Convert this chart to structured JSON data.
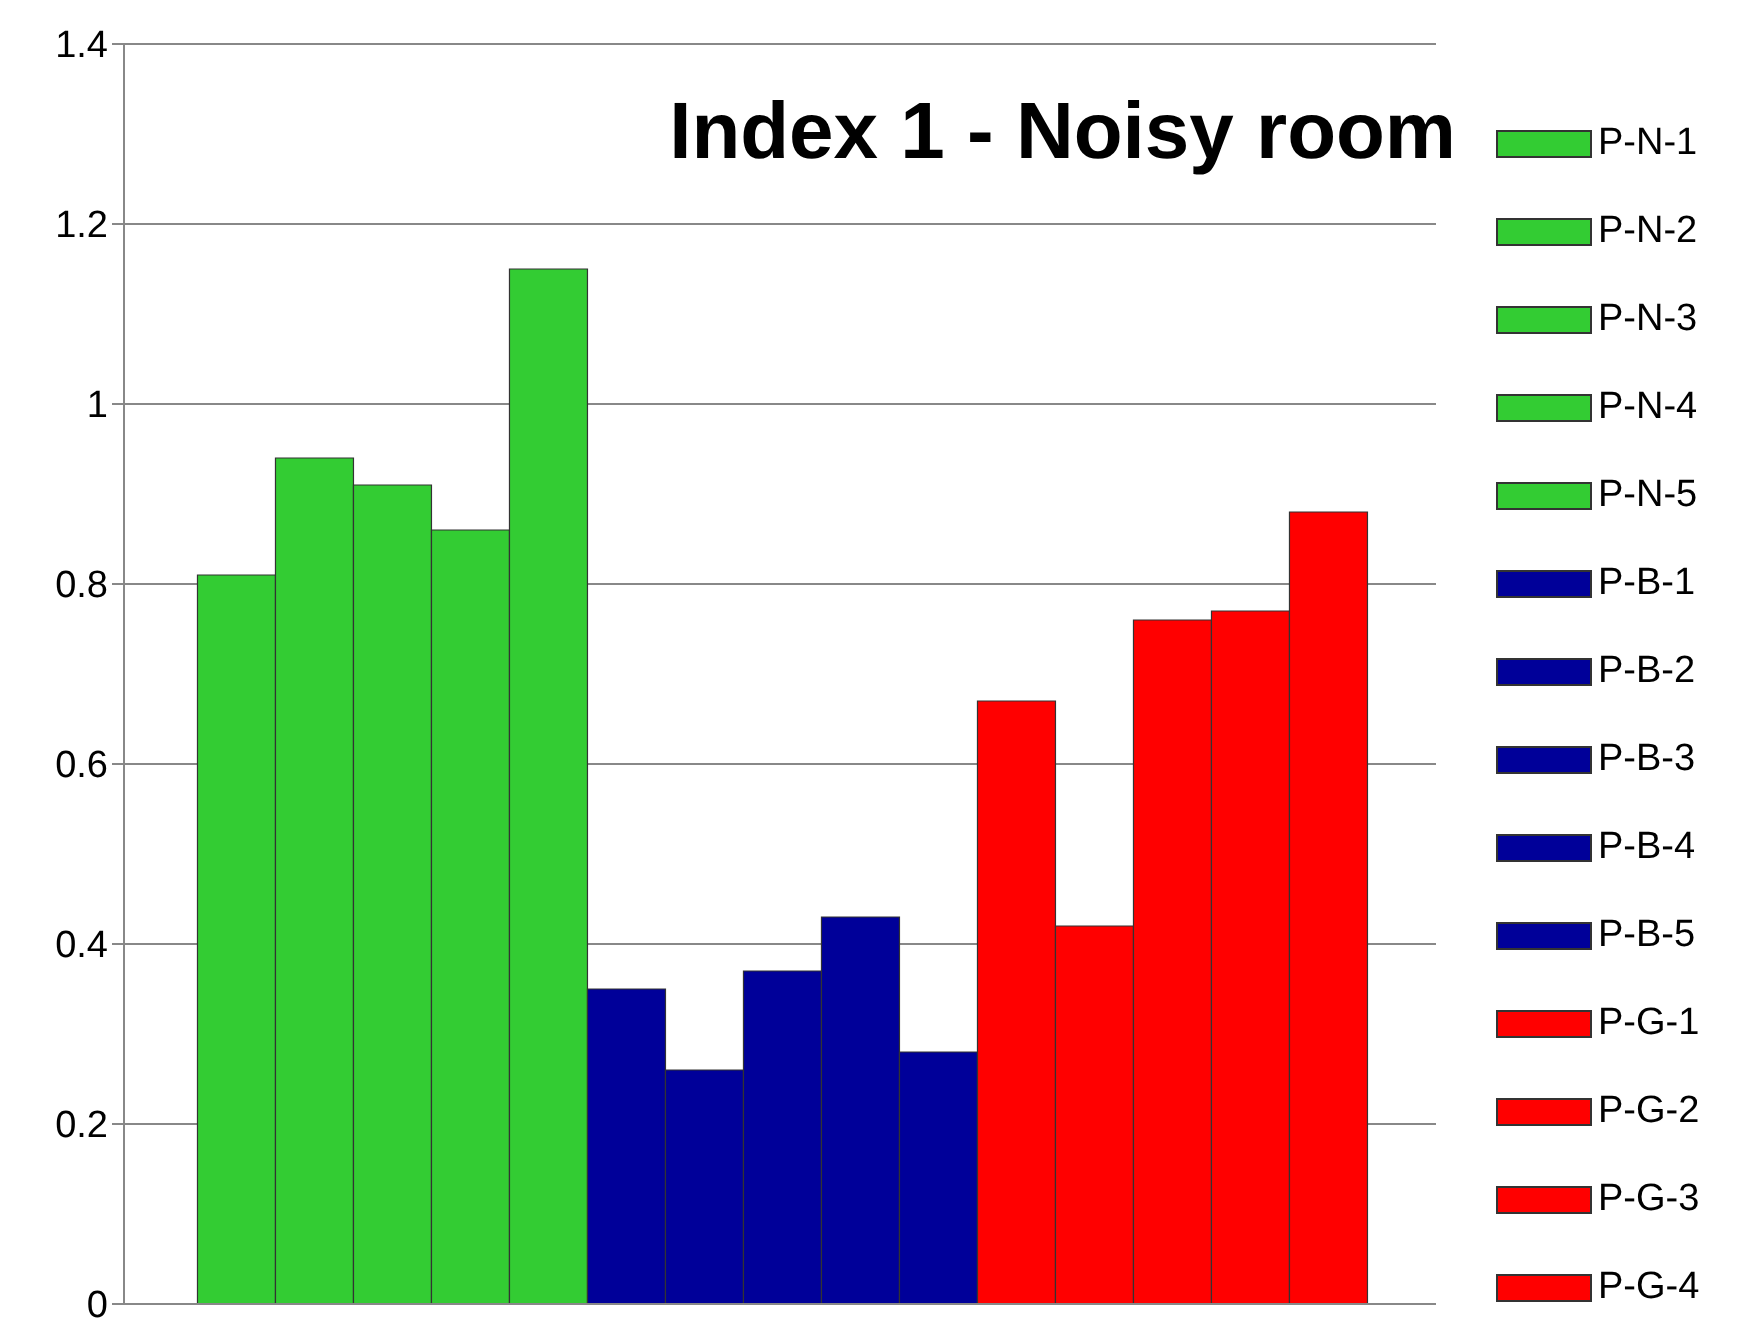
{
  "chart_data": {
    "type": "bar",
    "title": "Index 1 - Noisy room",
    "categories": [
      null
    ],
    "series": [
      {
        "name": "P-N-1",
        "color": "#33cc33",
        "values": [
          0.81
        ]
      },
      {
        "name": "P-N-2",
        "color": "#33cc33",
        "values": [
          0.94
        ]
      },
      {
        "name": "P-N-3",
        "color": "#33cc33",
        "values": [
          0.91
        ]
      },
      {
        "name": "P-N-4",
        "color": "#33cc33",
        "values": [
          0.86
        ]
      },
      {
        "name": "P-N-5",
        "color": "#33cc33",
        "values": [
          1.15
        ]
      },
      {
        "name": "P-B-1",
        "color": "#000099",
        "values": [
          0.35
        ]
      },
      {
        "name": "P-B-2",
        "color": "#000099",
        "values": [
          0.26
        ]
      },
      {
        "name": "P-B-3",
        "color": "#000099",
        "values": [
          0.37
        ]
      },
      {
        "name": "P-B-4",
        "color": "#000099",
        "values": [
          0.43
        ]
      },
      {
        "name": "P-B-5",
        "color": "#000099",
        "values": [
          0.28
        ]
      },
      {
        "name": "P-G-1",
        "color": "#ff0000",
        "values": [
          0.67
        ]
      },
      {
        "name": "P-G-2",
        "color": "#ff0000",
        "values": [
          0.42
        ]
      },
      {
        "name": "P-G-3",
        "color": "#ff0000",
        "values": [
          0.76
        ]
      },
      {
        "name": "P-G-4",
        "color": "#ff0000",
        "values": [
          0.77
        ]
      },
      {
        "color": "#ff0000",
        "values": [
          0.88
        ]
      }
    ],
    "ylim": [
      0,
      1.4
    ],
    "yticks": [
      0,
      0.2,
      0.4,
      0.6,
      0.8,
      1,
      1.2,
      1.4
    ],
    "grid": "y",
    "legend": "right"
  }
}
